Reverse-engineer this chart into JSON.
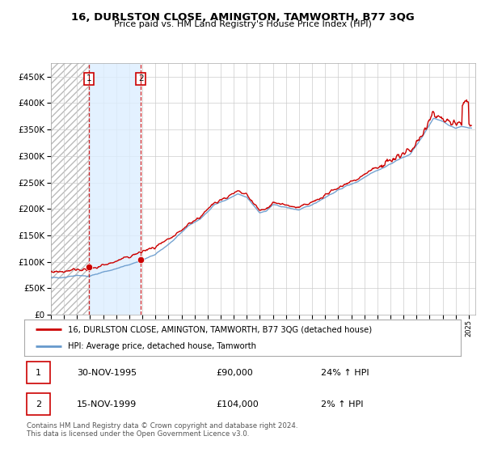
{
  "title": "16, DURLSTON CLOSE, AMINGTON, TAMWORTH, B77 3QG",
  "subtitle": "Price paid vs. HM Land Registry's House Price Index (HPI)",
  "legend_line1": "16, DURLSTON CLOSE, AMINGTON, TAMWORTH, B77 3QG (detached house)",
  "legend_line2": "HPI: Average price, detached house, Tamworth",
  "purchase1_date": "30-NOV-1995",
  "purchase1_price": 90000,
  "purchase1_hpi": "24% ↑ HPI",
  "purchase2_date": "15-NOV-1999",
  "purchase2_price": 104000,
  "purchase2_hpi": "2% ↑ HPI",
  "footnote": "Contains HM Land Registry data © Crown copyright and database right 2024.\nThis data is licensed under the Open Government Licence v3.0.",
  "hpi_color": "#6699cc",
  "price_color": "#cc0000",
  "marker_color": "#cc0000",
  "vline_color": "#cc0000",
  "shade_color": "#ddeeff",
  "grid_color": "#cccccc",
  "background_color": "#ffffff",
  "ylim": [
    0,
    475000
  ],
  "yticks": [
    0,
    50000,
    100000,
    150000,
    200000,
    250000,
    300000,
    350000,
    400000,
    450000
  ],
  "purchase1_x": 1995.92,
  "purchase2_x": 1999.88,
  "xmin": 1993.0,
  "xmax": 2025.5,
  "hpi_anchors_x": [
    1993.0,
    1994.0,
    1995.0,
    1995.92,
    1997.0,
    1998.0,
    1999.88,
    2001.0,
    2002.5,
    2003.5,
    2004.5,
    2005.5,
    2006.5,
    2007.3,
    2008.0,
    2009.0,
    2009.5,
    2010.0,
    2011.0,
    2012.0,
    2013.0,
    2014.0,
    2015.5,
    2016.5,
    2017.5,
    2018.5,
    2019.5,
    2020.5,
    2021.5,
    2022.3,
    2022.8,
    2023.5,
    2024.0,
    2024.5,
    2025.0
  ],
  "hpi_anchors_y": [
    70000,
    71000,
    75000,
    72500,
    81000,
    87000,
    102000,
    114000,
    143000,
    168000,
    182000,
    208000,
    218000,
    228000,
    222000,
    193000,
    196000,
    208000,
    203000,
    198000,
    208000,
    222000,
    242000,
    252000,
    268000,
    278000,
    292000,
    303000,
    338000,
    372000,
    368000,
    358000,
    353000,
    356000,
    353000
  ]
}
